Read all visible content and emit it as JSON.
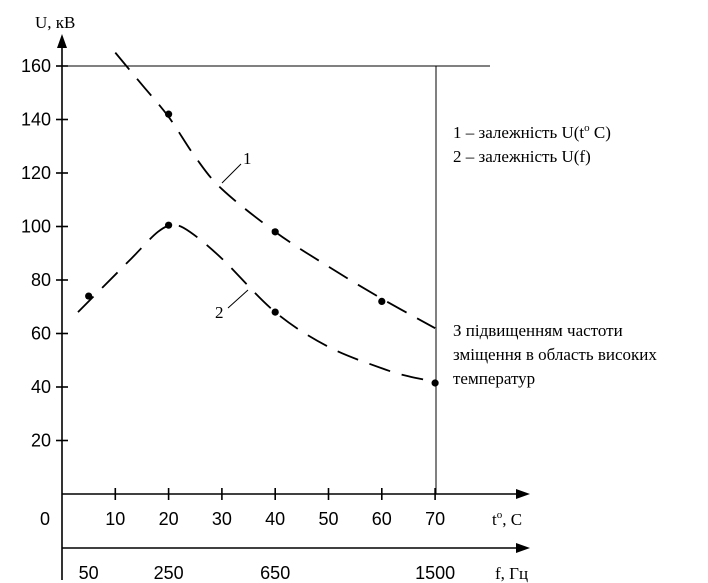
{
  "chart_data": {
    "type": "line",
    "y_axis": {
      "label": "U, кВ",
      "ticks": [
        "20",
        "40",
        "60",
        "80",
        "100",
        "120",
        "140",
        "160"
      ],
      "range": [
        0,
        160
      ]
    },
    "x_axis_temp": {
      "label": "t",
      "label_sup": "o",
      "label_tail": ", C",
      "ticks": [
        "10",
        "20",
        "30",
        "40",
        "50",
        "60",
        "70"
      ],
      "origin_label": "0"
    },
    "x_axis_freq": {
      "label": "f, Гц",
      "ticks": [
        "50",
        "250",
        "650",
        "1500"
      ]
    },
    "series": [
      {
        "name": "1",
        "curve": [
          [
            10,
            165
          ],
          [
            15,
            153
          ],
          [
            20,
            141
          ],
          [
            25,
            126
          ],
          [
            30,
            114
          ],
          [
            40,
            98
          ],
          [
            50,
            85
          ],
          [
            60,
            73
          ],
          [
            70,
            62
          ]
        ],
        "points": [
          [
            20,
            142
          ],
          [
            40,
            98
          ],
          [
            60,
            72
          ]
        ]
      },
      {
        "name": "2",
        "curve": [
          [
            3,
            68
          ],
          [
            8,
            78
          ],
          [
            13,
            88
          ],
          [
            18,
            98
          ],
          [
            21,
            100.5
          ],
          [
            24,
            98
          ],
          [
            30,
            88
          ],
          [
            40,
            68
          ],
          [
            50,
            55
          ],
          [
            60,
            47
          ],
          [
            65,
            44
          ],
          [
            70,
            42
          ]
        ],
        "points": [
          [
            5,
            74
          ],
          [
            20,
            100.5
          ],
          [
            40,
            68
          ],
          [
            70,
            41.5
          ]
        ]
      }
    ],
    "legend": {
      "line1_text": "1 – залежність U(t",
      "line1_sup": "o",
      "line1_tail": " C)",
      "line2_text": "2 – залежність U(f)"
    },
    "annotation": {
      "lines": [
        "З підвищенням частоти",
        "зміщення в область високих",
        "температур"
      ]
    }
  }
}
